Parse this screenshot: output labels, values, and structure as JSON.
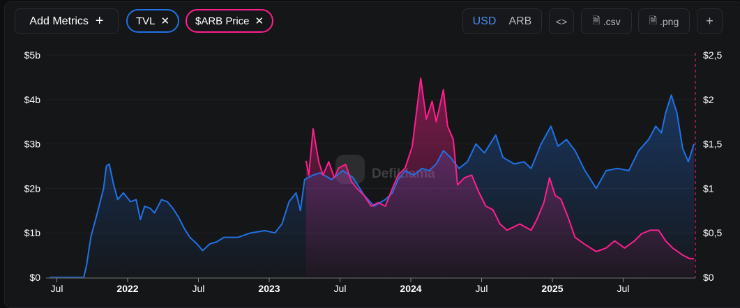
{
  "toolbar": {
    "add_metrics": "Add Metrics",
    "add_icon": "+",
    "metrics": [
      {
        "label": "TVL",
        "color": "#2172e5"
      },
      {
        "label": "$ARB Price",
        "color": "#ff1f8e"
      }
    ],
    "currency": {
      "selected": "USD",
      "other": "ARB"
    },
    "embed": "<>",
    "csv": ".csv",
    "png": ".png",
    "more": "+"
  },
  "watermark": "DefiLlama",
  "chart_data": {
    "type": "line",
    "x_unit": "decimal year",
    "x_ticks": [
      {
        "v": 2021.5,
        "label": "Jul"
      },
      {
        "v": 2022,
        "label": "2022"
      },
      {
        "v": 2022.5,
        "label": "Jul"
      },
      {
        "v": 2023,
        "label": "2023"
      },
      {
        "v": 2023.5,
        "label": "Jul"
      },
      {
        "v": 2024,
        "label": "2024"
      },
      {
        "v": 2024.5,
        "label": "Jul"
      },
      {
        "v": 2025,
        "label": "2025"
      },
      {
        "v": 2025.5,
        "label": "Jul"
      }
    ],
    "y_left": {
      "ticks": [
        {
          "v": 0,
          "label": "$0"
        },
        {
          "v": 1,
          "label": "$1b"
        },
        {
          "v": 2,
          "label": "$2b"
        },
        {
          "v": 3,
          "label": "$3b"
        },
        {
          "v": 4,
          "label": "$4b"
        },
        {
          "v": 5,
          "label": "$5b"
        }
      ],
      "range": [
        0,
        5
      ],
      "unit": "USD billions"
    },
    "y_right": {
      "ticks": [
        {
          "v": 0,
          "label": "$0"
        },
        {
          "v": 0.5,
          "label": "$0,5"
        },
        {
          "v": 1,
          "label": "$1"
        },
        {
          "v": 1.5,
          "label": "$1,5"
        },
        {
          "v": 2,
          "label": "$2"
        },
        {
          "v": 2.5,
          "label": "$2,5"
        }
      ],
      "range": [
        0,
        2.5
      ],
      "unit": "USD"
    },
    "series": [
      {
        "name": "TVL",
        "axis": "left",
        "color": "#2172e5",
        "points": [
          [
            2021.45,
            0
          ],
          [
            2021.69,
            0
          ],
          [
            2021.71,
            0.27
          ],
          [
            2021.74,
            0.9
          ],
          [
            2021.79,
            1.5
          ],
          [
            2021.83,
            2.0
          ],
          [
            2021.85,
            2.5
          ],
          [
            2021.87,
            2.55
          ],
          [
            2021.9,
            2.1
          ],
          [
            2021.93,
            1.75
          ],
          [
            2021.97,
            1.9
          ],
          [
            2022.02,
            1.7
          ],
          [
            2022.06,
            1.75
          ],
          [
            2022.09,
            1.3
          ],
          [
            2022.12,
            1.6
          ],
          [
            2022.16,
            1.55
          ],
          [
            2022.19,
            1.45
          ],
          [
            2022.24,
            1.75
          ],
          [
            2022.28,
            1.7
          ],
          [
            2022.32,
            1.55
          ],
          [
            2022.36,
            1.35
          ],
          [
            2022.4,
            1.1
          ],
          [
            2022.44,
            0.9
          ],
          [
            2022.49,
            0.75
          ],
          [
            2022.53,
            0.6
          ],
          [
            2022.58,
            0.75
          ],
          [
            2022.63,
            0.8
          ],
          [
            2022.68,
            0.9
          ],
          [
            2022.78,
            0.9
          ],
          [
            2022.87,
            1.0
          ],
          [
            2022.97,
            1.05
          ],
          [
            2023.04,
            1.0
          ],
          [
            2023.09,
            1.2
          ],
          [
            2023.14,
            1.7
          ],
          [
            2023.19,
            1.9
          ],
          [
            2023.22,
            1.5
          ],
          [
            2023.25,
            2.2
          ],
          [
            2023.31,
            2.3
          ],
          [
            2023.36,
            2.35
          ],
          [
            2023.44,
            2.2
          ],
          [
            2023.52,
            2.4
          ],
          [
            2023.59,
            2.25
          ],
          [
            2023.67,
            1.85
          ],
          [
            2023.74,
            1.6
          ],
          [
            2023.82,
            1.75
          ],
          [
            2023.87,
            1.9
          ],
          [
            2023.91,
            2.2
          ],
          [
            2023.96,
            2.4
          ],
          [
            2024.02,
            2.3
          ],
          [
            2024.08,
            2.45
          ],
          [
            2024.13,
            2.4
          ],
          [
            2024.18,
            2.55
          ],
          [
            2024.23,
            2.85
          ],
          [
            2024.28,
            2.7
          ],
          [
            2024.34,
            2.45
          ],
          [
            2024.4,
            2.6
          ],
          [
            2024.46,
            3.0
          ],
          [
            2024.52,
            2.8
          ],
          [
            2024.6,
            3.2
          ],
          [
            2024.65,
            2.7
          ],
          [
            2024.73,
            2.55
          ],
          [
            2024.8,
            2.6
          ],
          [
            2024.85,
            2.45
          ],
          [
            2024.92,
            3.0
          ],
          [
            2024.99,
            3.4
          ],
          [
            2025.04,
            2.95
          ],
          [
            2025.1,
            3.1
          ],
          [
            2025.16,
            2.85
          ],
          [
            2025.23,
            2.4
          ],
          [
            2025.31,
            2.0
          ],
          [
            2025.38,
            2.4
          ],
          [
            2025.46,
            2.45
          ],
          [
            2025.54,
            2.4
          ],
          [
            2025.61,
            2.85
          ],
          [
            2025.68,
            3.1
          ],
          [
            2025.73,
            3.4
          ],
          [
            2025.77,
            3.25
          ],
          [
            2025.8,
            3.7
          ],
          [
            2025.84,
            4.1
          ],
          [
            2025.88,
            3.7
          ],
          [
            2025.92,
            2.9
          ],
          [
            2025.96,
            2.6
          ],
          [
            2026.0,
            3.0
          ]
        ]
      },
      {
        "name": "$ARB Price",
        "axis": "right",
        "color": "#ff1f8e",
        "points": [
          [
            2023.26,
            1.31
          ],
          [
            2023.28,
            1.15
          ],
          [
            2023.31,
            1.67
          ],
          [
            2023.35,
            1.3
          ],
          [
            2023.38,
            1.15
          ],
          [
            2023.42,
            1.3
          ],
          [
            2023.46,
            1.12
          ],
          [
            2023.49,
            1.23
          ],
          [
            2023.54,
            1.27
          ],
          [
            2023.58,
            1.08
          ],
          [
            2023.62,
            1.0
          ],
          [
            2023.67,
            0.92
          ],
          [
            2023.72,
            0.8
          ],
          [
            2023.77,
            0.84
          ],
          [
            2023.82,
            0.8
          ],
          [
            2023.87,
            1.0
          ],
          [
            2023.91,
            1.15
          ],
          [
            2023.96,
            1.23
          ],
          [
            2024.01,
            1.47
          ],
          [
            2024.05,
            1.98
          ],
          [
            2024.07,
            2.24
          ],
          [
            2024.11,
            1.78
          ],
          [
            2024.15,
            1.98
          ],
          [
            2024.18,
            1.75
          ],
          [
            2024.23,
            2.11
          ],
          [
            2024.26,
            1.7
          ],
          [
            2024.3,
            1.55
          ],
          [
            2024.33,
            1.04
          ],
          [
            2024.38,
            1.12
          ],
          [
            2024.43,
            1.15
          ],
          [
            2024.48,
            0.96
          ],
          [
            2024.53,
            0.8
          ],
          [
            2024.58,
            0.76
          ],
          [
            2024.63,
            0.6
          ],
          [
            2024.68,
            0.53
          ],
          [
            2024.73,
            0.57
          ],
          [
            2024.77,
            0.6
          ],
          [
            2024.85,
            0.53
          ],
          [
            2024.89,
            0.65
          ],
          [
            2024.94,
            0.84
          ],
          [
            2024.98,
            1.12
          ],
          [
            2025.02,
            0.92
          ],
          [
            2025.06,
            0.88
          ],
          [
            2025.11,
            0.68
          ],
          [
            2025.16,
            0.45
          ],
          [
            2025.23,
            0.37
          ],
          [
            2025.31,
            0.29
          ],
          [
            2025.38,
            0.33
          ],
          [
            2025.44,
            0.41
          ],
          [
            2025.51,
            0.33
          ],
          [
            2025.58,
            0.41
          ],
          [
            2025.63,
            0.49
          ],
          [
            2025.69,
            0.53
          ],
          [
            2025.75,
            0.53
          ],
          [
            2025.8,
            0.41
          ],
          [
            2025.85,
            0.33
          ],
          [
            2025.92,
            0.25
          ],
          [
            2025.97,
            0.21
          ],
          [
            2026.0,
            0.21
          ]
        ]
      }
    ],
    "legend": "top-left (metric pills)"
  }
}
